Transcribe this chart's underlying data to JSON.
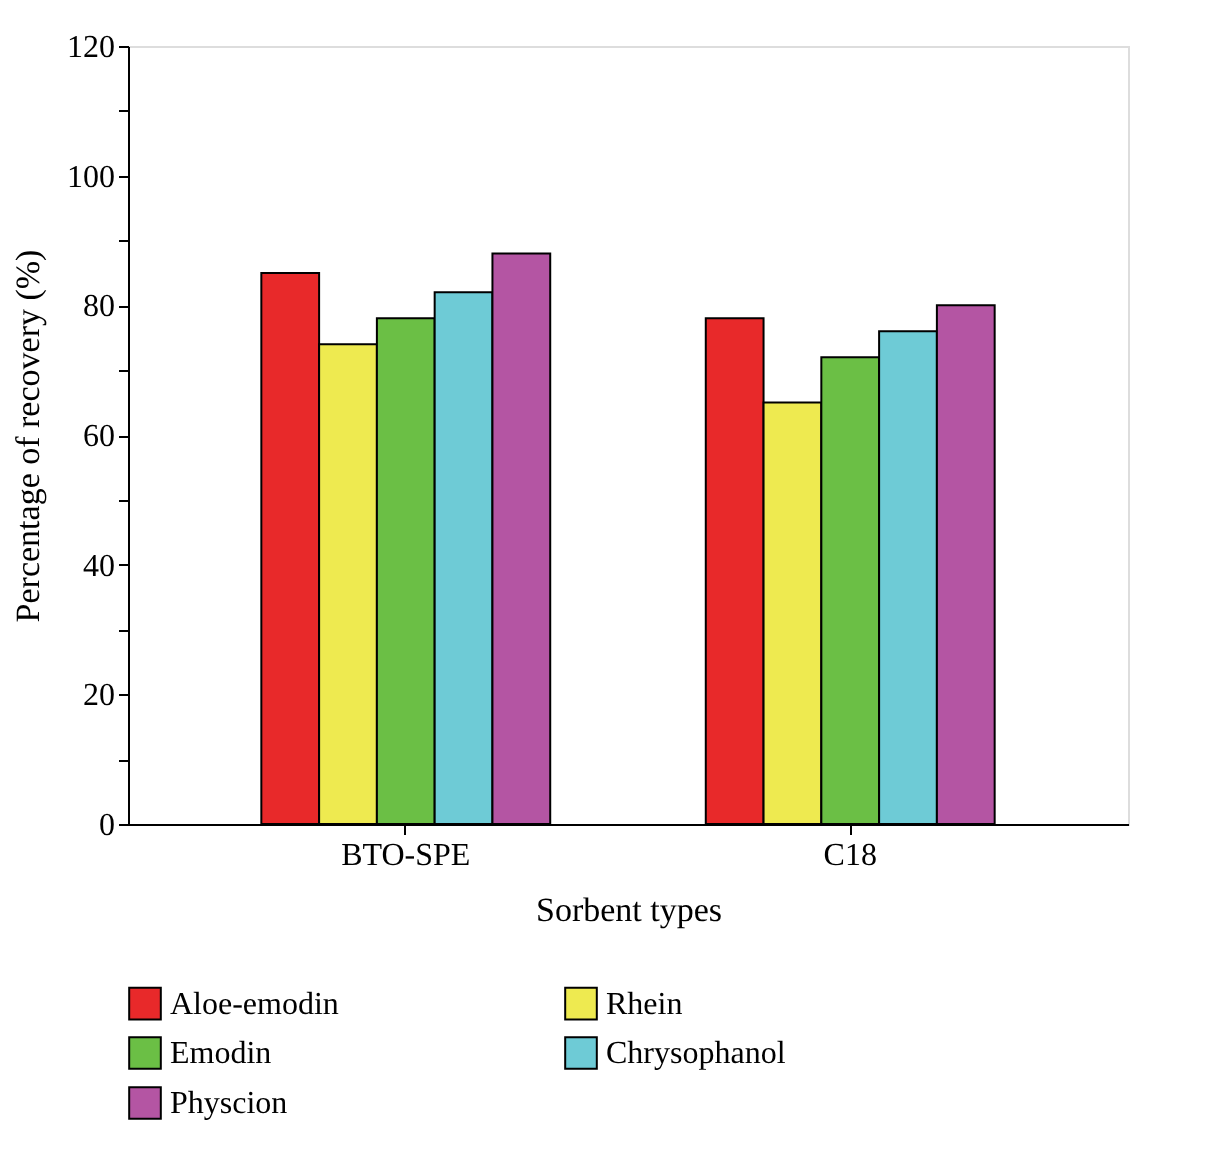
{
  "chart_data": {
    "type": "bar",
    "xlabel": "Sorbent types",
    "ylabel": "Percentage of recovery (%)",
    "categories": [
      "BTO-SPE",
      "C18"
    ],
    "series": [
      {
        "name": "Aloe-emodin",
        "color": "#e8292a",
        "values": [
          85,
          78
        ]
      },
      {
        "name": "Rhein",
        "color": "#eeea50",
        "values": [
          74,
          65
        ]
      },
      {
        "name": "Emodin",
        "color": "#6bbf45",
        "values": [
          78,
          72
        ]
      },
      {
        "name": "Chrysophanol",
        "color": "#6ecbd6",
        "values": [
          82,
          76
        ]
      },
      {
        "name": "Physcion",
        "color": "#b455a3",
        "values": [
          88,
          80
        ]
      }
    ],
    "ylim": [
      0,
      120
    ],
    "yticks": [
      0,
      {
        "value": 10,
        "label": null
      },
      20,
      {
        "value": 30,
        "label": null
      },
      40,
      {
        "value": 50,
        "label": null
      },
      60,
      {
        "value": 70,
        "label": null
      },
      80,
      {
        "value": 90,
        "label": null
      },
      100,
      {
        "value": 110,
        "label": null
      },
      120
    ],
    "grid": false,
    "legend": "bottom"
  }
}
